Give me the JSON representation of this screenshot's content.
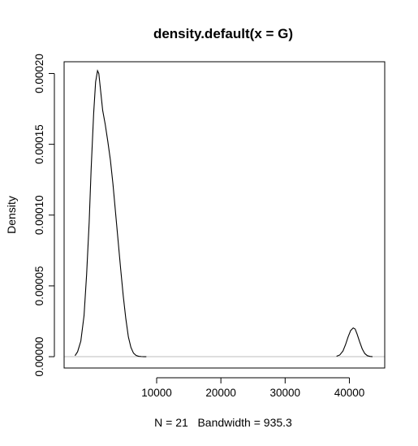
{
  "chart_data": {
    "type": "line",
    "title": "density.default(x = G)",
    "xlabel": "N = 21   Bandwidth = 935.3",
    "ylabel": "Density",
    "xlim": [
      -4400,
      45500
    ],
    "ylim": [
      -8e-06,
      0.0002083
    ],
    "x_ticks": [
      10000,
      20000,
      30000,
      40000
    ],
    "x_tick_labels": [
      "10000",
      "20000",
      "30000",
      "40000"
    ],
    "y_ticks": [
      0,
      5e-05,
      0.0001,
      0.00015,
      0.0002
    ],
    "y_tick_labels": [
      "0.00000",
      "0.00005",
      "0.00010",
      "0.00015",
      "0.00020"
    ],
    "baseline_y": 0,
    "baseline_color": "#bebebe",
    "line_color": "#000000",
    "series": [
      {
        "x": [
          -2700,
          -2300,
          -1800,
          -1300,
          -900,
          -500,
          -200,
          200,
          500,
          800,
          1000,
          1300,
          1600,
          2000,
          2400,
          2800,
          3200,
          3600,
          4000,
          4400,
          4800,
          5200,
          5600,
          6000,
          6400,
          6800,
          7200,
          7600,
          8000,
          8400,
          38000,
          38500,
          39000,
          39400,
          39800,
          40200,
          40600,
          40900,
          41200,
          41600,
          42000,
          42400,
          42800,
          43200,
          43600
        ],
        "y": [
          7e-07,
          3.5e-06,
          1.1e-05,
          2.9e-05,
          5.8e-05,
          9.5e-05,
          0.000132,
          0.000172,
          0.000194,
          0.000202,
          0.0002,
          0.000187,
          0.000174,
          0.000164,
          0.000152,
          0.000139,
          0.000122,
          0.000102,
          8.2e-05,
          6.2e-05,
          4.3e-05,
          2.7e-05,
          1.4e-05,
          6.5e-06,
          2.5e-06,
          9e-07,
          3e-07,
          1e-07,
          2e-08,
          0.0,
          3e-07,
          1.2e-06,
          4e-06,
          8.5e-06,
          1.4e-05,
          1.85e-05,
          2.03e-05,
          1.95e-05,
          1.6e-05,
          1.05e-05,
          5.5e-06,
          2.2e-06,
          7e-07,
          2e-07,
          0.0
        ]
      }
    ]
  }
}
